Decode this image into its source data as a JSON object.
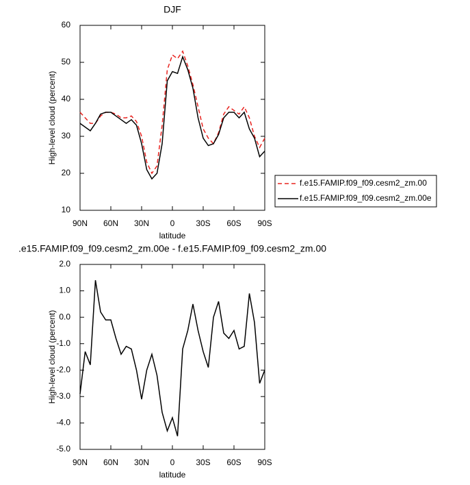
{
  "chart_data": [
    {
      "type": "line",
      "title": "DJF",
      "xlabel": "latitude",
      "ylabel": "High-level cloud (percent)",
      "x": [
        90,
        85,
        80,
        75,
        70,
        65,
        60,
        55,
        50,
        45,
        40,
        35,
        30,
        25,
        20,
        15,
        10,
        5,
        0,
        -5,
        -10,
        -15,
        -20,
        -25,
        -30,
        -35,
        -40,
        -45,
        -50,
        -55,
        -60,
        -65,
        -70,
        -75,
        -80,
        -85,
        -90
      ],
      "series": [
        {
          "name": "f.e15.FAMIP.f09_f09.cesm2_zm.00",
          "color": "#e8231f",
          "dash": "6,4",
          "values": [
            36.5,
            35,
            33.5,
            33.5,
            35.5,
            36.5,
            36.5,
            36,
            35,
            35,
            35.5,
            34,
            30,
            23,
            20,
            22,
            33,
            48,
            52,
            51,
            53,
            49,
            44,
            38,
            32,
            29.5,
            28,
            31,
            36,
            38,
            37,
            36,
            38,
            35,
            30,
            27,
            29.5
          ]
        },
        {
          "name": "f.e15.FAMIP.f09_f09.cesm2_zm.00e",
          "color": "#000000",
          "values": [
            33.5,
            32.5,
            31.5,
            33.5,
            36,
            36.5,
            36.5,
            35.5,
            34.5,
            33.5,
            34.5,
            33,
            28,
            21,
            18.5,
            20,
            28,
            45,
            47.5,
            47,
            51.5,
            48,
            43,
            35,
            29.5,
            27.5,
            28,
            30.5,
            35,
            36.5,
            36.5,
            35,
            36.5,
            32,
            29.5,
            24.5,
            26
          ]
        }
      ],
      "xlim": [
        90,
        -90
      ],
      "xticks": [
        {
          "value": 90,
          "label": "90N"
        },
        {
          "value": 60,
          "label": "60N"
        },
        {
          "value": 30,
          "label": "30N"
        },
        0,
        {
          "value": -30,
          "label": "30S"
        },
        {
          "value": -60,
          "label": "60S"
        },
        {
          "value": -90,
          "label": "90S"
        }
      ],
      "ylim": [
        10,
        60
      ],
      "yticks": [
        10,
        20,
        30,
        40,
        50,
        60
      ],
      "legend": "right"
    },
    {
      "type": "line",
      "title": ".e15.FAMIP.f09_f09.cesm2_zm.00e - f.e15.FAMIP.f09_f09.cesm2_zm.00",
      "xlabel": "latitude",
      "ylabel": "High-level cloud (percent)",
      "x": [
        90,
        85,
        80,
        75,
        70,
        65,
        60,
        55,
        50,
        45,
        40,
        35,
        30,
        25,
        20,
        15,
        10,
        5,
        0,
        -5,
        -10,
        -15,
        -20,
        -25,
        -30,
        -35,
        -40,
        -45,
        -50,
        -55,
        -60,
        -65,
        -70,
        -75,
        -80,
        -85,
        -90
      ],
      "series": [
        {
          "color": "#000000",
          "values": [
            -2.9,
            -1.3,
            -1.8,
            1.4,
            0.2,
            -0.1,
            -0.1,
            -0.8,
            -1.4,
            -1.1,
            -1.2,
            -2.0,
            -3.1,
            -2.0,
            -1.4,
            -2.2,
            -3.6,
            -4.3,
            -3.8,
            -4.5,
            -1.2,
            -0.5,
            0.5,
            -0.5,
            -1.3,
            -1.9,
            0.0,
            0.6,
            -0.6,
            -0.8,
            -0.5,
            -1.2,
            -1.1,
            0.9,
            -0.2,
            -2.5,
            -2.0
          ]
        }
      ],
      "xlim": [
        90,
        -90
      ],
      "xticks": [
        {
          "value": 90,
          "label": "90N"
        },
        {
          "value": 60,
          "label": "60N"
        },
        {
          "value": 30,
          "label": "30N"
        },
        0,
        {
          "value": -30,
          "label": "30S"
        },
        {
          "value": -60,
          "label": "60S"
        },
        {
          "value": -90,
          "label": "90S"
        }
      ],
      "ylim": [
        -5,
        2
      ],
      "yticks": [
        {
          "value": -5,
          "label": "-5.0"
        },
        {
          "value": -4,
          "label": "-4.0"
        },
        {
          "value": -3,
          "label": "-3.0"
        },
        {
          "value": -2,
          "label": "-2.0"
        },
        {
          "value": -1,
          "label": "-1.0"
        },
        {
          "value": 0,
          "label": "0.0"
        },
        {
          "value": 1,
          "label": "1.0"
        },
        {
          "value": 2,
          "label": "2.0"
        }
      ]
    }
  ]
}
